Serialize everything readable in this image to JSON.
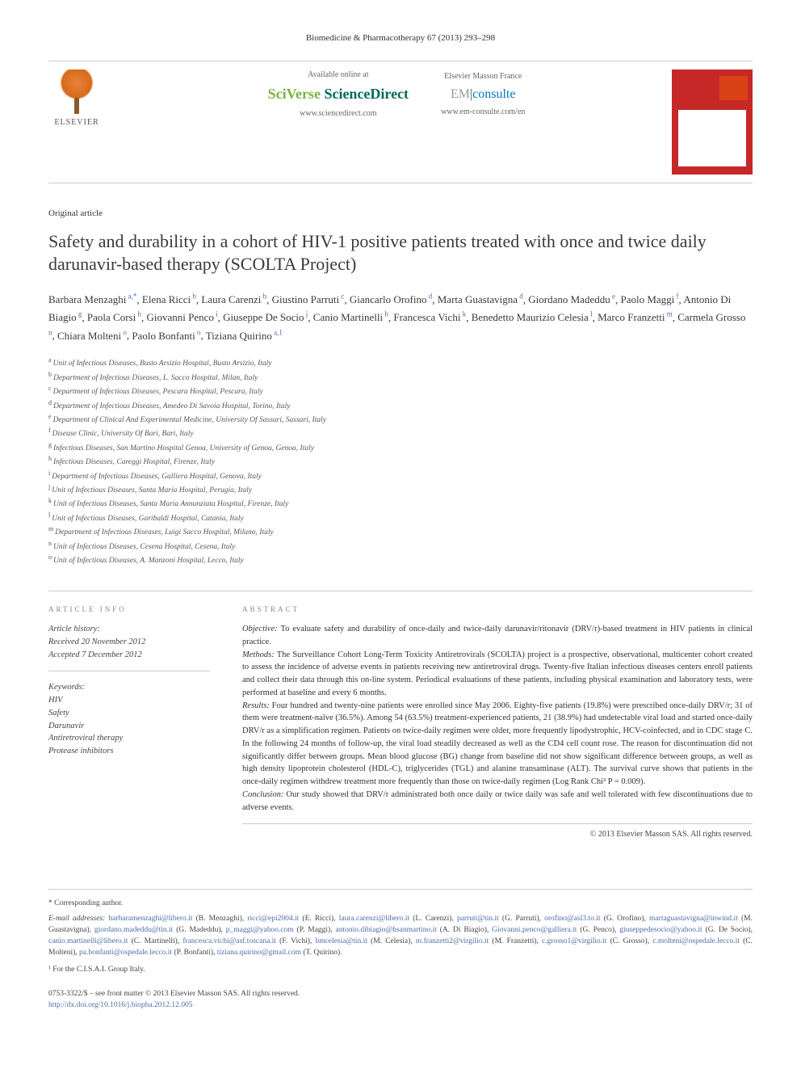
{
  "journal_header": "Biomedicine & Pharmacotherapy 67 (2013) 293–298",
  "publisher": {
    "logo_text": "ELSEVIER",
    "available_label": "Available online at",
    "sciverse": "SciVerse",
    "sciencedirect": "ScienceDirect",
    "sd_url": "www.sciencedirect.com",
    "masson_label": "Elsevier Masson France",
    "em_prefix": "EM",
    "consulte": "consulte",
    "em_url": "www.em-consulte.com/en"
  },
  "article_type": "Original article",
  "title": "Safety and durability in a cohort of HIV-1 positive patients treated with once and twice daily darunavir-based therapy (SCOLTA Project)",
  "authors": [
    {
      "name": "Barbara Menzaghi",
      "sup": "a,*"
    },
    {
      "name": "Elena Ricci",
      "sup": "b"
    },
    {
      "name": "Laura Carenzi",
      "sup": "b"
    },
    {
      "name": "Giustino Parruti",
      "sup": "c"
    },
    {
      "name": "Giancarlo Orofino",
      "sup": "d"
    },
    {
      "name": "Marta Guastavigna",
      "sup": "d"
    },
    {
      "name": "Giordano Madeddu",
      "sup": "e"
    },
    {
      "name": "Paolo Maggi",
      "sup": "f"
    },
    {
      "name": "Antonio Di Biagio",
      "sup": "g"
    },
    {
      "name": "Paola Corsi",
      "sup": "h"
    },
    {
      "name": "Giovanni Penco",
      "sup": "i"
    },
    {
      "name": "Giuseppe De Socio",
      "sup": "j"
    },
    {
      "name": "Canio Martinelli",
      "sup": "h"
    },
    {
      "name": "Francesca Vichi",
      "sup": "k"
    },
    {
      "name": "Benedetto Maurizio Celesia",
      "sup": "l"
    },
    {
      "name": "Marco Franzetti",
      "sup": "m"
    },
    {
      "name": "Carmela Grosso",
      "sup": "n"
    },
    {
      "name": "Chiara Molteni",
      "sup": "o"
    },
    {
      "name": "Paolo Bonfanti",
      "sup": "o"
    },
    {
      "name": "Tiziana Quirino",
      "sup": "a,1"
    }
  ],
  "affiliations": [
    {
      "letter": "a",
      "text": "Unit of Infectious Diseases, Busto Arsizio Hospital, Busto Arsizio, Italy"
    },
    {
      "letter": "b",
      "text": "Department of Infectious Diseases, L. Sacco Hospital, Milan, Italy"
    },
    {
      "letter": "c",
      "text": "Department of Infectious Diseases, Pescara Hospital, Pescara, Italy"
    },
    {
      "letter": "d",
      "text": "Department of Infectious Diseases, Amedeo Di Savoia Hospital, Torino, Italy"
    },
    {
      "letter": "e",
      "text": "Department of Clinical And Experimental Medicine, University Of Sassari, Sassari, Italy"
    },
    {
      "letter": "f",
      "text": "Disease Clinic, University Of Bari, Bari, Italy"
    },
    {
      "letter": "g",
      "text": "Infectious Diseases, San Martino Hospital Genoa, University of Genoa, Genoa, Italy"
    },
    {
      "letter": "h",
      "text": "Infectious Diseases, Careggi Hospital, Firenze, Italy"
    },
    {
      "letter": "i",
      "text": "Department of Infectious Diseases, Galliera Hospital, Genova, Italy"
    },
    {
      "letter": "j",
      "text": "Unit of Infectious Diseases, Santa Maria Hospital, Perugia, Italy"
    },
    {
      "letter": "k",
      "text": "Unit of Infectious Diseases, Santa Maria Annunziata Hospital, Firenze, Italy"
    },
    {
      "letter": "l",
      "text": "Unit of Infectious Diseases, Garibaldi Hospital, Catania, Italy"
    },
    {
      "letter": "m",
      "text": "Department of Infectious Diseases, Luigi Sacco Hospital, Milano, Italy"
    },
    {
      "letter": "n",
      "text": "Unit of Infectious Diseases, Cesena Hospital, Cesena, Italy"
    },
    {
      "letter": "o",
      "text": "Unit of Infectious Diseases, A. Manzoni Hospital, Lecco, Italy"
    }
  ],
  "info_header": "ARTICLE INFO",
  "abstract_header": "ABSTRACT",
  "history": {
    "label": "Article history:",
    "received": "Received 20 November 2012",
    "accepted": "Accepted 7 December 2012"
  },
  "keywords": {
    "label": "Keywords:",
    "items": [
      "HIV",
      "Safety",
      "Darunavir",
      "Antiretroviral therapy",
      "Protease inhibitors"
    ]
  },
  "abstract": {
    "objective_label": "Objective:",
    "objective": " To evaluate safety and durability of once-daily and twice-daily darunavir/ritonavir (DRV/r)-based treatment in HIV patients in clinical practice.",
    "methods_label": "Methods:",
    "methods": " The Surveillance Cohort Long-Term Toxicity Antiretrovirals (SCOLTA) project is a prospective, observational, multicenter cohort created to assess the incidence of adverse events in patients receiving new antiretroviral drugs. Twenty-five Italian infectious diseases centers enroll patients and collect their data through this on-line system. Periodical evaluations of these patients, including physical examination and laboratory tests, were performed at baseline and every 6 months.",
    "results_label": "Results:",
    "results": " Four hundred and twenty-nine patients were enrolled since May 2006. Eighty-five patients (19.8%) were prescribed once-daily DRV/r; 31 of them were treatment-naïve (36.5%). Among 54 (63.5%) treatment-experienced patients, 21 (38.9%) had undetectable viral load and started once-daily DRV/r as a simplification regimen. Patients on twice-daily regimen were older, more frequently lipodystrophic, HCV-coinfected, and in CDC stage C. In the following 24 months of follow-up, the viral load steadily decreased as well as the CD4 cell count rose. The reason for discontinuation did not significantly differ between groups. Mean blood glucose (BG) change from baseline did not show significant difference between groups, as well as high density lipoprotein cholesterol (HDL-C), triglycerides (TGL) and alanine transaminase (ALT). The survival curve shows that patients in the once-daily regimen withdrew treatment more frequently than those on twice-daily regimen (Log Rank Chi² P = 0.009).",
    "conclusion_label": "Conclusion:",
    "conclusion": " Our study showed that DRV/r administrated both once daily or twice daily was safe and well tolerated with few discontinuations due to adverse events."
  },
  "copyright": "© 2013 Elsevier Masson SAS. All rights reserved.",
  "footer": {
    "corresp": "* Corresponding author.",
    "email_label": "E-mail addresses:",
    "emails": [
      {
        "addr": "barbaramenzaghi@libero.it",
        "who": "(B. Menzaghi)"
      },
      {
        "addr": "ricci@epi2004.it",
        "who": "(E. Ricci)"
      },
      {
        "addr": "laura.carenzi@libero.it",
        "who": "(L. Carenzi)"
      },
      {
        "addr": "parruti@tin.it",
        "who": "(G. Parruti)"
      },
      {
        "addr": "orofino@asl3.to.it",
        "who": "(G. Orofino)"
      },
      {
        "addr": "martaguastavigna@inwind.it",
        "who": "(M. Guastavigna)"
      },
      {
        "addr": "giordano.madeddu@tin.it",
        "who": "(G. Madeddu)"
      },
      {
        "addr": "p_maggi@yahoo.com",
        "who": "(P. Maggi)"
      },
      {
        "addr": "antonio.dibiagio@hsanmartino.it",
        "who": "(A. Di Biagio)"
      },
      {
        "addr": "Giovanni.penco@galliera.it",
        "who": "(G. Penco)"
      },
      {
        "addr": "giuseppedesocio@yahoo.it",
        "who": "(G. De Socio)"
      },
      {
        "addr": "canio.martinelli@libero.it",
        "who": "(C. Martinelli)"
      },
      {
        "addr": "francesca.vichi@asf.toscana.it",
        "who": "(F. Vichi)"
      },
      {
        "addr": "bmcelesia@tin.it",
        "who": "(M. Celesia)"
      },
      {
        "addr": "m.franzetti2@virgilio.it",
        "who": "(M. Franzetti)"
      },
      {
        "addr": "c.grosso1@virgilio.it",
        "who": "(C. Grosso)"
      },
      {
        "addr": "c.molteni@ospedale.lecco.it",
        "who": "(C. Molteni)"
      },
      {
        "addr": "pa.bonfanti@ospedale.lecco.it",
        "who": "(P. Bonfanti)"
      },
      {
        "addr": "tiziana.quirino@gmail.com",
        "who": "(T. Quirino)"
      }
    ],
    "group_note": "¹ For the C.I.S.A.I. Group Italy.",
    "issn": "0753-3322/$ – see front matter © 2013 Elsevier Masson SAS. All rights reserved.",
    "doi": "http://dx.doi.org/10.1016/j.biopha.2012.12.005"
  }
}
